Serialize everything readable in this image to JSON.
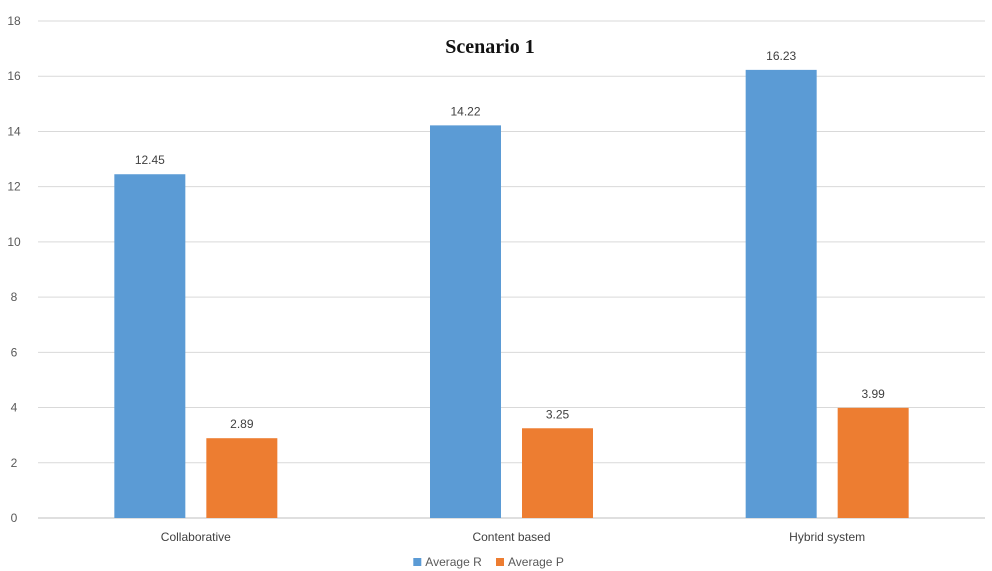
{
  "chart_data": {
    "type": "bar",
    "title": "Scenario 1",
    "xlabel": "",
    "ylabel": "",
    "categories": [
      "Collaborative",
      "Content based",
      "Hybrid system"
    ],
    "series": [
      {
        "name": "Average R",
        "values": [
          12.45,
          14.22,
          16.23
        ],
        "labels": [
          "12.45",
          "14.22",
          "16.23"
        ],
        "color": "#5B9BD5"
      },
      {
        "name": "Average P",
        "values": [
          2.89,
          3.25,
          3.99
        ],
        "labels": [
          "2.89",
          "3.25",
          "3.99"
        ],
        "color": "#ED7D31"
      }
    ],
    "ylim": [
      0,
      18
    ],
    "yticks": [
      0,
      2,
      4,
      6,
      8,
      10,
      12,
      14,
      16,
      18
    ],
    "grid": true,
    "legend_position": "bottom"
  }
}
